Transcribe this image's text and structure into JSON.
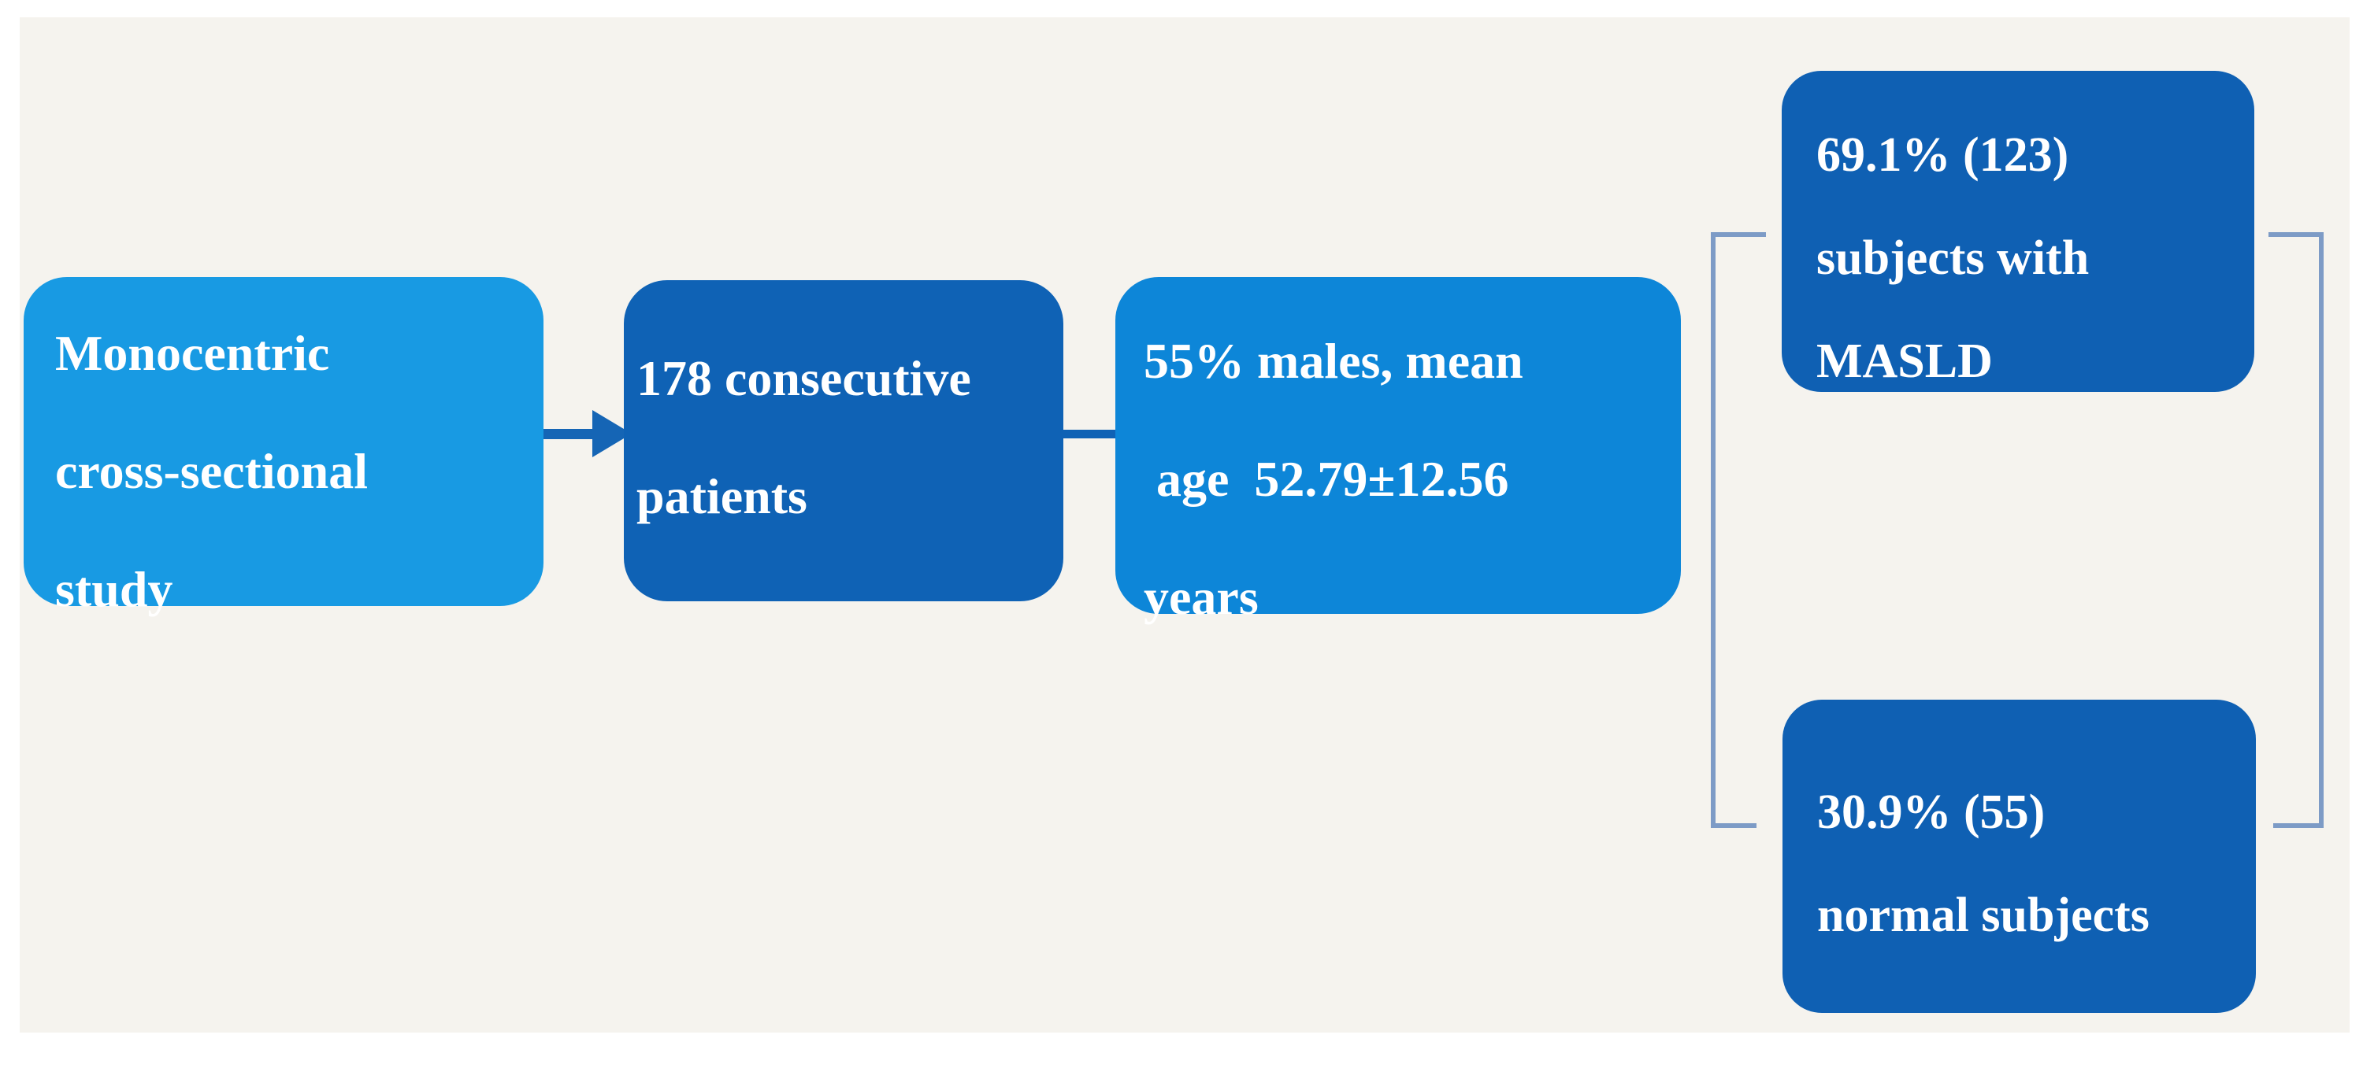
{
  "figure": {
    "title": "Study flow diagram",
    "box_study": {
      "lines": [
        "Monocentric",
        "cross-sectional",
        "study"
      ]
    },
    "box_patients": {
      "lines": [
        "178 consecutive",
        "patients"
      ]
    },
    "box_demographics": {
      "lines": [
        "55% males, mean",
        " age  52.79±12.56",
        "years"
      ]
    },
    "box_masld": {
      "lines": [
        "69.1% (123)",
        "subjects with",
        "MASLD"
      ]
    },
    "box_normal": {
      "lines": [
        "30.9% (55)",
        "normal subjects"
      ]
    }
  },
  "colors": {
    "page_background": "#ffffff",
    "panel_background": "#f5f3ee",
    "box_light_blue_1": "#189ae3",
    "box_light_blue_2": "#0d86d8",
    "box_dark_blue_1": "#0f62b5",
    "box_dark_blue_2": "#0f60b3",
    "arrow_blue": "#1565b5",
    "bracket_steel_blue": "#7d9bc6",
    "text": "#ffffff"
  }
}
